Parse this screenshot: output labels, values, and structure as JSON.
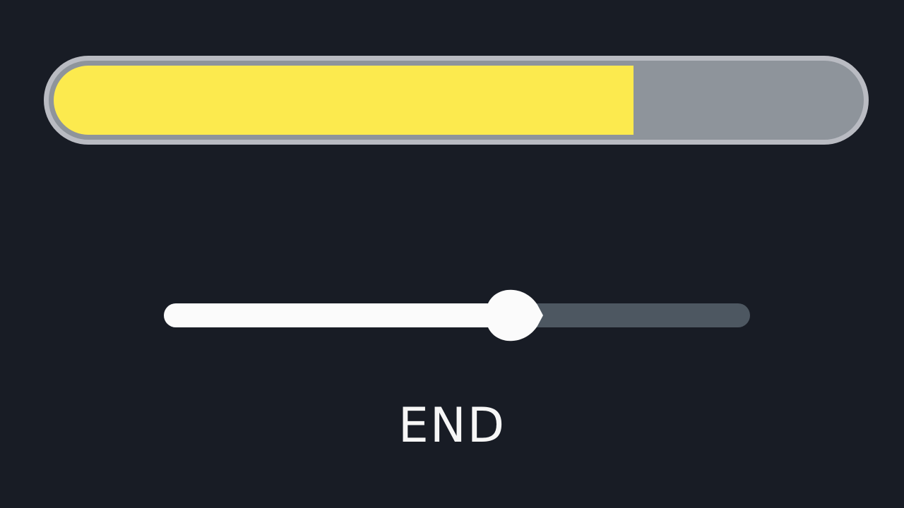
{
  "progress": {
    "value_fraction": 0.72,
    "fill_color": "#fcea4e",
    "track_color": "#8e949b",
    "border_color": "#b9bbc2"
  },
  "slider": {
    "value_fraction": 0.57,
    "filled_color": "#fbfbfb",
    "track_color": "#4d5761",
    "thumb_color": "#fbfbfb"
  },
  "end_label": "END",
  "background_color": "#181c25"
}
